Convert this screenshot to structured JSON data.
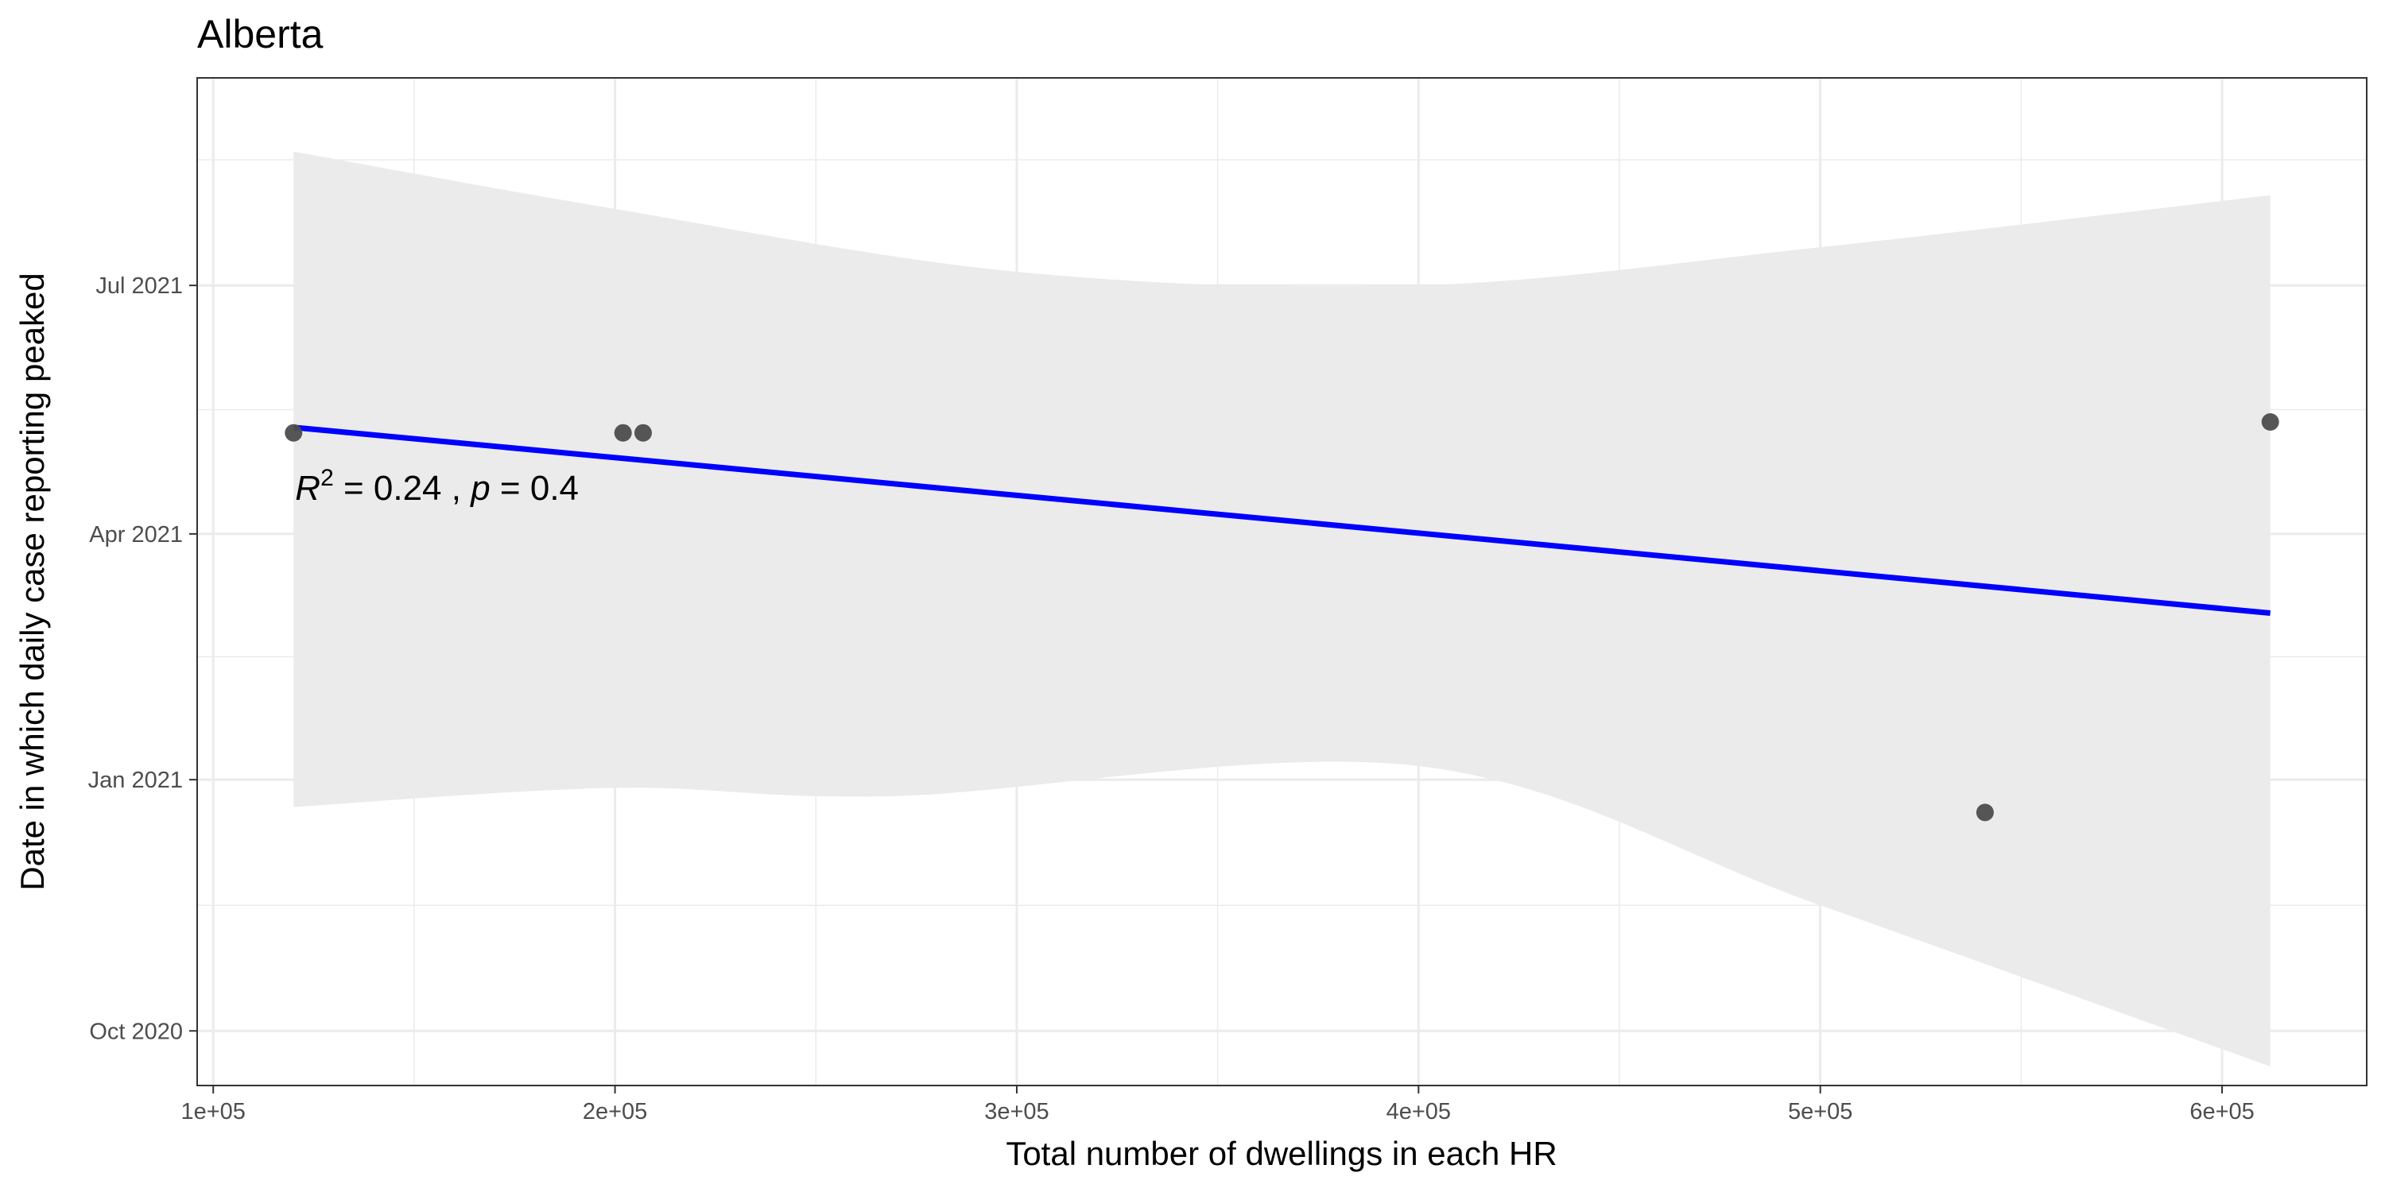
{
  "chart_data": {
    "type": "scatter",
    "title": "Alberta",
    "xlabel": "Total number of dwellings in each HR",
    "ylabel": "Date in which daily case reporting peaked",
    "xlim": [
      96000,
      636000
    ],
    "ylim": [
      "2020-09-11",
      "2021-09-15"
    ],
    "x_ticks": [
      {
        "value": 100000,
        "label": "1e+05"
      },
      {
        "value": 200000,
        "label": "2e+05"
      },
      {
        "value": 300000,
        "label": "3e+05"
      },
      {
        "value": 400000,
        "label": "4e+05"
      },
      {
        "value": 500000,
        "label": "5e+05"
      },
      {
        "value": 600000,
        "label": "6e+05"
      }
    ],
    "y_ticks": [
      {
        "value": "2020-10-01",
        "label": "Oct 2020"
      },
      {
        "value": "2021-01-01",
        "label": "Jan 2021"
      },
      {
        "value": "2021-04-01",
        "label": "Apr 2021"
      },
      {
        "value": "2021-07-01",
        "label": "Jul 2021"
      }
    ],
    "points": [
      {
        "x": 120000,
        "y": "2021-05-08"
      },
      {
        "x": 202000,
        "y": "2021-05-08"
      },
      {
        "x": 207000,
        "y": "2021-05-08"
      },
      {
        "x": 541000,
        "y": "2020-12-20"
      },
      {
        "x": 612000,
        "y": "2021-05-12"
      }
    ],
    "regression_line": {
      "color": "#0000ff",
      "points": [
        {
          "x": 120000,
          "y": "2021-05-10"
        },
        {
          "x": 612000,
          "y": "2021-03-03"
        }
      ]
    },
    "confidence_band": {
      "color": "#ebebeb",
      "upper": [
        {
          "x": 120000,
          "y": "2021-08-19"
        },
        {
          "x": 200000,
          "y": "2021-07-29"
        },
        {
          "x": 300000,
          "y": "2021-07-06"
        },
        {
          "x": 400000,
          "y": "2021-07-01"
        },
        {
          "x": 500000,
          "y": "2021-07-15"
        },
        {
          "x": 612000,
          "y": "2021-08-03"
        }
      ],
      "lower": [
        {
          "x": 120000,
          "y": "2020-12-22"
        },
        {
          "x": 200000,
          "y": "2020-12-29"
        },
        {
          "x": 270000,
          "y": "2020-12-26"
        },
        {
          "x": 400000,
          "y": "2021-01-06"
        },
        {
          "x": 500000,
          "y": "2020-11-16"
        },
        {
          "x": 612000,
          "y": "2020-09-18"
        }
      ]
    },
    "annotation": {
      "r_symbol": "R",
      "r_exponent": "2",
      "r_value": " = 0.24 , ",
      "p_symbol": "p",
      "p_value": " = 0.4",
      "x": 120000,
      "y": "2021-04-21"
    },
    "grid": true,
    "legend": "none",
    "colors": {
      "point": "#4d4d4d",
      "grid": "#ebebeb",
      "panel_border": "#333333"
    }
  }
}
